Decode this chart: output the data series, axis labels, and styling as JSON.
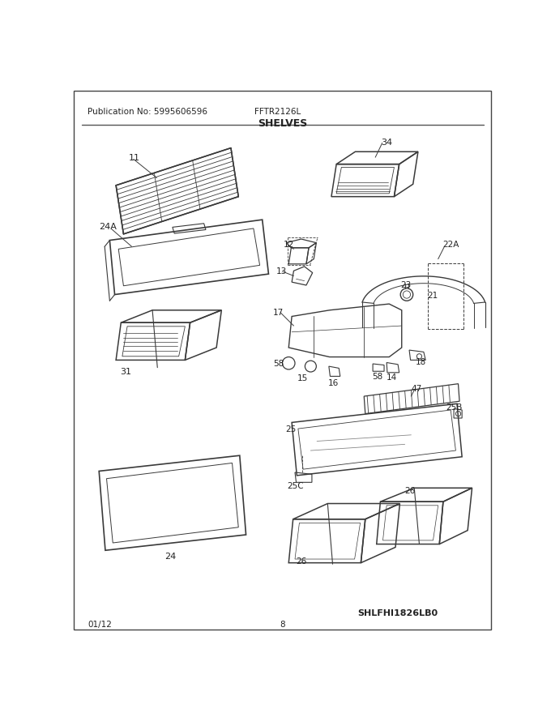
{
  "title": "SHELVES",
  "pub_no": "Publication No: 5995606596",
  "model": "FFTR2126L",
  "diagram_id": "SHLFHI1826LB0",
  "date": "01/12",
  "page": "8",
  "bg_color": "#ffffff",
  "lc": "#3a3a3a",
  "tc": "#222222",
  "fig_width": 6.8,
  "fig_height": 8.8,
  "dpi": 100
}
